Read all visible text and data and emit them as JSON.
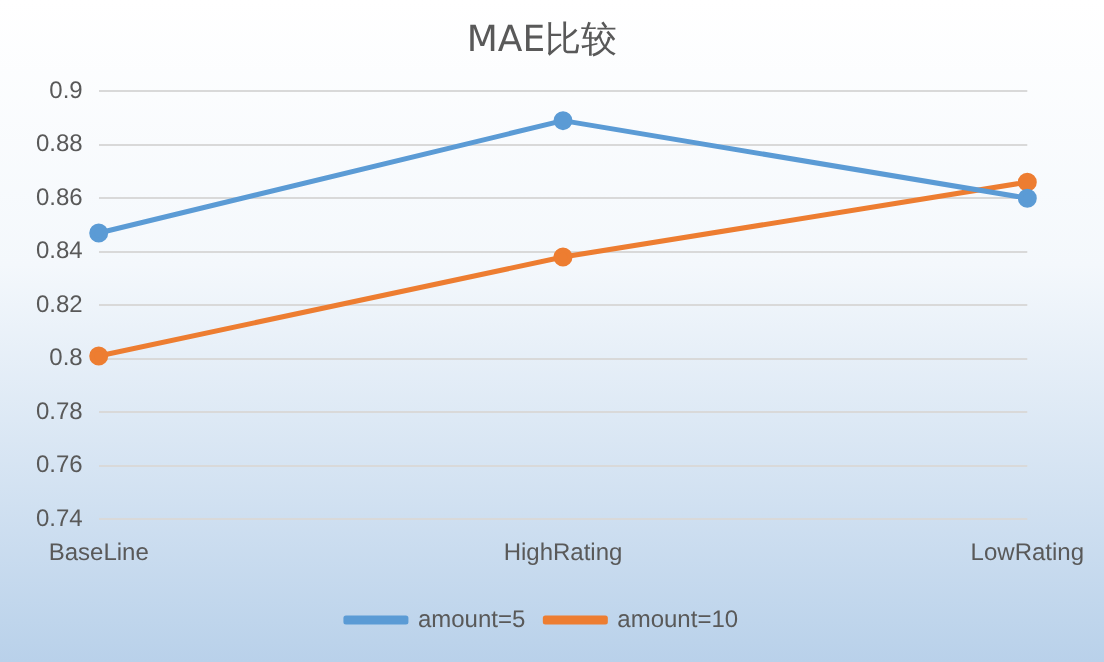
{
  "chart_data": {
    "type": "line",
    "title": "MAE比较",
    "categories": [
      "BaseLine",
      "HighRating",
      "LowRating"
    ],
    "series": [
      {
        "name": "amount=5",
        "color": "#5b9bd5",
        "values": [
          0.847,
          0.889,
          0.86
        ]
      },
      {
        "name": "amount=10",
        "color": "#ed7d31",
        "values": [
          0.801,
          0.838,
          0.866
        ]
      }
    ],
    "ylim": [
      0.74,
      0.9
    ],
    "yticks": [
      0.74,
      0.76,
      0.78,
      0.8,
      0.82,
      0.84,
      0.86,
      0.88,
      0.9
    ],
    "grid": "y",
    "legend": "bottom",
    "marker": "circle"
  }
}
